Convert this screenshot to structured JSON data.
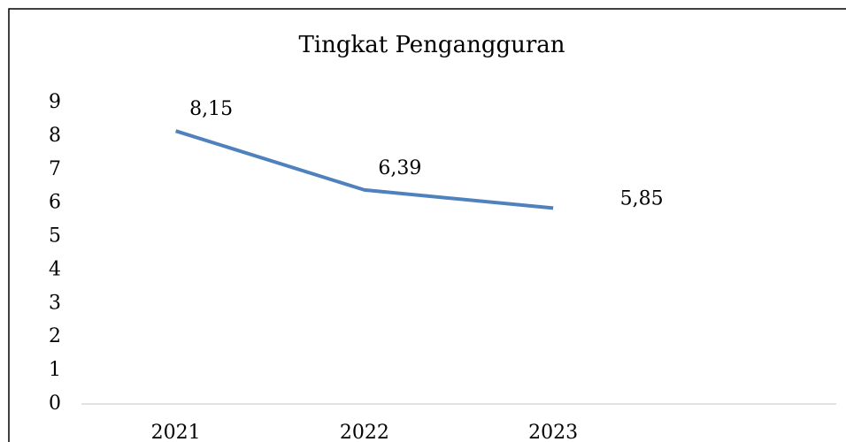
{
  "chart_data": {
    "type": "line",
    "title": "Tingkat Pengangguran",
    "categories": [
      "2021",
      "2022",
      "2023",
      null
    ],
    "series": [
      {
        "name": "Tingkat Pengangguran",
        "color": "#4f81bd",
        "values": [
          8.15,
          6.39,
          5.85,
          null
        ],
        "value_labels": [
          "8,15",
          "6,39",
          "5,85",
          null
        ]
      }
    ],
    "ylim": [
      0,
      9
    ],
    "yticks": [
      0,
      1,
      2,
      3,
      4,
      5,
      6,
      7,
      8,
      9
    ],
    "grid": false
  }
}
